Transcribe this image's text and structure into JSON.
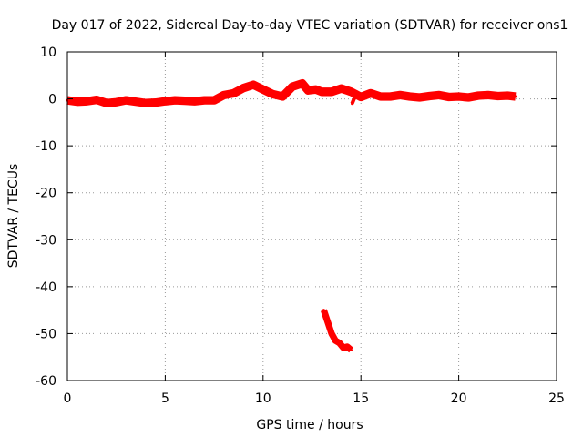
{
  "chart_data": {
    "type": "line",
    "title": "Day 017 of 2022, Sidereal Day-to-day VTEC variation (SDTVAR) for receiver ons1",
    "xlabel": "GPS time / hours",
    "ylabel": "SDTVAR / TECUs",
    "xlim": [
      0,
      25
    ],
    "ylim": [
      -60,
      10
    ],
    "x_ticks": [
      "0",
      "5",
      "10",
      "15",
      "20",
      "25"
    ],
    "y_ticks": [
      "10",
      "0",
      "-10",
      "-20",
      "-30",
      "-40",
      "-50",
      "-60"
    ],
    "grid": true,
    "series": [
      {
        "name": "main",
        "color": "#ff0000",
        "band_width": 1.8,
        "points": [
          [
            0.0,
            -0.3
          ],
          [
            0.5,
            -0.6
          ],
          [
            1.0,
            -0.5
          ],
          [
            1.5,
            -0.2
          ],
          [
            2.0,
            -0.9
          ],
          [
            2.5,
            -0.7
          ],
          [
            3.0,
            -0.3
          ],
          [
            3.5,
            -0.6
          ],
          [
            4.0,
            -0.9
          ],
          [
            4.5,
            -0.8
          ],
          [
            5.0,
            -0.5
          ],
          [
            5.5,
            -0.3
          ],
          [
            6.0,
            -0.4
          ],
          [
            6.5,
            -0.5
          ],
          [
            7.0,
            -0.3
          ],
          [
            7.5,
            -0.3
          ],
          [
            8.0,
            0.8
          ],
          [
            8.5,
            1.2
          ],
          [
            9.0,
            2.3
          ],
          [
            9.5,
            3.0
          ],
          [
            10.0,
            2.0
          ],
          [
            10.5,
            1.0
          ],
          [
            11.0,
            0.5
          ],
          [
            11.5,
            2.6
          ],
          [
            12.0,
            3.3
          ],
          [
            12.3,
            1.8
          ],
          [
            12.7,
            2.0
          ],
          [
            13.0,
            1.5
          ],
          [
            13.5,
            1.5
          ],
          [
            14.0,
            2.2
          ],
          [
            14.5,
            1.5
          ],
          [
            15.0,
            0.4
          ],
          [
            15.5,
            1.2
          ],
          [
            16.0,
            0.5
          ],
          [
            16.5,
            0.5
          ],
          [
            17.0,
            0.8
          ],
          [
            17.5,
            0.5
          ],
          [
            18.0,
            0.3
          ],
          [
            18.5,
            0.6
          ],
          [
            19.0,
            0.8
          ],
          [
            19.5,
            0.4
          ],
          [
            20.0,
            0.5
          ],
          [
            20.5,
            0.3
          ],
          [
            21.0,
            0.7
          ],
          [
            21.5,
            0.8
          ],
          [
            22.0,
            0.6
          ],
          [
            22.5,
            0.7
          ],
          [
            22.9,
            0.5
          ]
        ]
      },
      {
        "name": "spur",
        "color": "#ff0000",
        "band_width": 0.8,
        "points": [
          [
            14.8,
            1.5
          ],
          [
            14.55,
            -1.0
          ]
        ]
      },
      {
        "name": "segment",
        "color": "#ff0000",
        "band_width": 1.4,
        "points": [
          [
            13.1,
            -45.0
          ],
          [
            13.3,
            -47.5
          ],
          [
            13.5,
            -50.0
          ],
          [
            13.7,
            -51.5
          ],
          [
            13.9,
            -52.0
          ],
          [
            14.1,
            -53.0
          ],
          [
            14.3,
            -52.8
          ],
          [
            14.5,
            -53.5
          ]
        ]
      }
    ]
  }
}
